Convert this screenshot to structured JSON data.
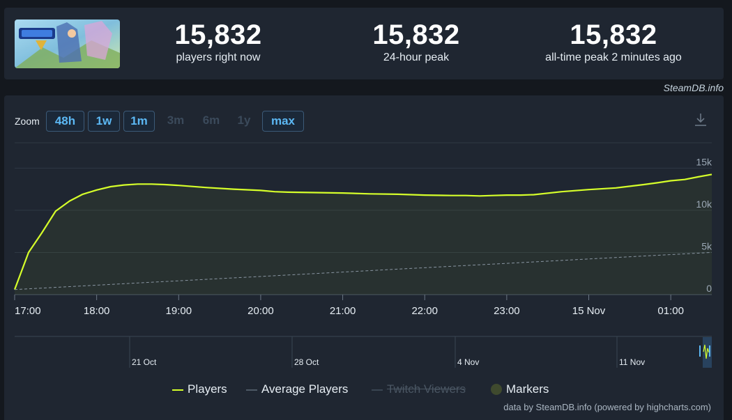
{
  "stats": [
    {
      "value": "15,832",
      "label": "players right now"
    },
    {
      "value": "15,832",
      "label": "24-hour peak"
    },
    {
      "value": "15,832",
      "label": "all-time peak 2 minutes ago"
    }
  ],
  "credit": "SteamDB.info",
  "zoom": {
    "label": "Zoom",
    "buttons": [
      {
        "label": "48h",
        "state": "active"
      },
      {
        "label": "1w",
        "state": "active"
      },
      {
        "label": "1m",
        "state": "active"
      },
      {
        "label": "3m",
        "state": "disabled"
      },
      {
        "label": "6m",
        "state": "disabled"
      },
      {
        "label": "1y",
        "state": "disabled"
      },
      {
        "label": "max",
        "state": "active"
      }
    ]
  },
  "legend": {
    "players": "Players",
    "average": "Average Players",
    "twitch": "Twitch Viewers",
    "markers": "Markers"
  },
  "footer": "data by SteamDB.info (powered by highcharts.com)",
  "colors": {
    "players": "#d6ff2a",
    "average": "#8a96a3",
    "accent": "#5cb8f4",
    "panel": "#1f2631"
  },
  "chart_data": {
    "type": "line",
    "x_unit": "hours (14 Nov 17:00 – 15 Nov 01:30)",
    "x_tick_labels": [
      "17:00",
      "18:00",
      "19:00",
      "20:00",
      "21:00",
      "22:00",
      "23:00",
      "15 Nov",
      "01:00"
    ],
    "y_tick_labels": [
      "0",
      "5k",
      "10k",
      "15k"
    ],
    "ylim": [
      0,
      15000
    ],
    "grid": true,
    "legend_position": "bottom",
    "series": [
      {
        "name": "Players",
        "x": [
          17.0,
          17.17,
          17.33,
          17.5,
          17.67,
          17.83,
          18.0,
          18.17,
          18.33,
          18.5,
          18.67,
          18.83,
          19.0,
          19.33,
          19.67,
          20.0,
          20.17,
          20.33,
          20.67,
          21.0,
          21.33,
          21.67,
          22.0,
          22.33,
          22.5,
          22.67,
          22.83,
          23.0,
          23.17,
          23.33,
          23.67,
          24.0,
          24.33,
          24.67,
          24.83,
          25.0,
          25.17,
          25.33,
          25.5
        ],
        "values": [
          600,
          5000,
          7300,
          9900,
          11100,
          11900,
          12400,
          12800,
          13000,
          13100,
          13100,
          13050,
          12950,
          12700,
          12500,
          12350,
          12200,
          12150,
          12100,
          12050,
          11950,
          11900,
          11800,
          11750,
          11750,
          11700,
          11750,
          11800,
          11800,
          11850,
          12200,
          12450,
          12650,
          13050,
          13250,
          13500,
          13650,
          13950,
          14250
        ]
      },
      {
        "name": "Average Players",
        "x": [
          17.0,
          25.5
        ],
        "values": [
          600,
          5000
        ]
      }
    ],
    "navigator": {
      "tick_labels": [
        "21 Oct",
        "28 Oct",
        "4 Nov",
        "11 Nov"
      ]
    }
  }
}
